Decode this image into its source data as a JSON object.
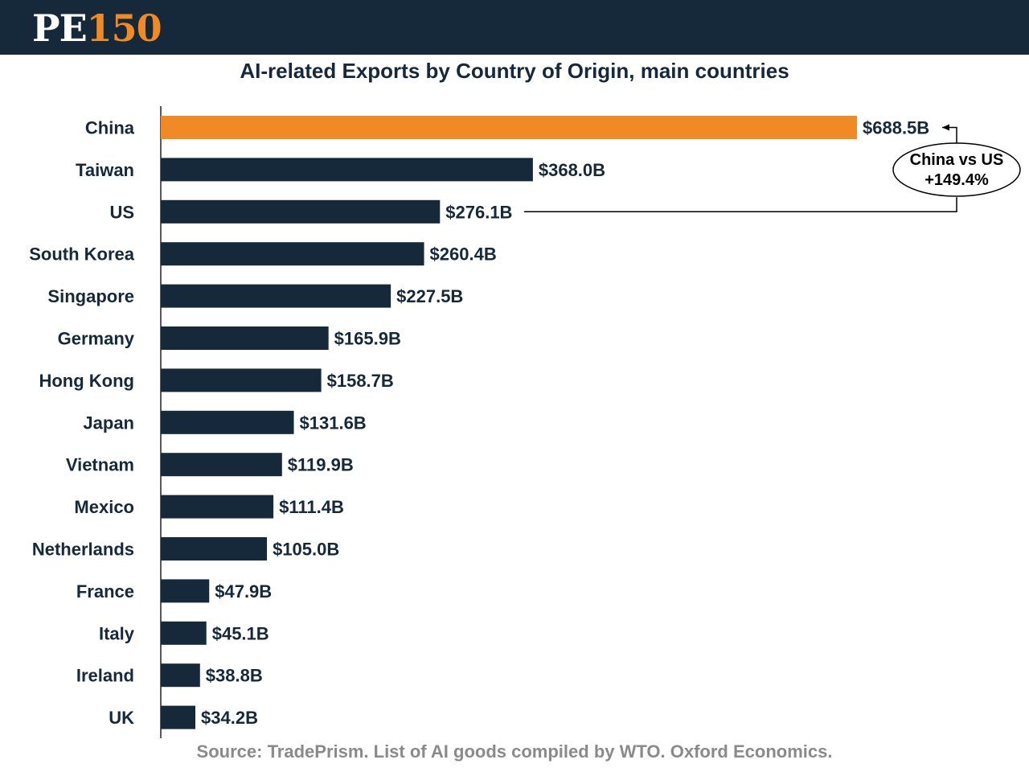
{
  "header": {
    "logo_pe": "PE",
    "logo_num": "150"
  },
  "colors": {
    "header_bg": "#15293a",
    "bar": "#15293a",
    "highlight": "#f08a24",
    "text": "#15293a",
    "source": "#8a8a8a"
  },
  "chart_data": {
    "type": "bar",
    "orientation": "horizontal",
    "title": "AI-related Exports by Country of Origin, main countries",
    "categories": [
      "China",
      "Taiwan",
      "US",
      "South Korea",
      "Singapore",
      "Germany",
      "Hong Kong",
      "Japan",
      "Vietnam",
      "Mexico",
      "Netherlands",
      "France",
      "Italy",
      "Ireland",
      "UK"
    ],
    "values": [
      688.5,
      368.0,
      276.1,
      260.4,
      227.5,
      165.9,
      158.7,
      131.6,
      119.9,
      111.4,
      105.0,
      47.9,
      45.1,
      38.8,
      34.2
    ],
    "value_labels": [
      "$688.5B",
      "$368.0B",
      "$276.1B",
      "$260.4B",
      "$227.5B",
      "$165.9B",
      "$158.7B",
      "$131.6B",
      "$119.9B",
      "$111.4B",
      "$105.0B",
      "$47.9B",
      "$45.1B",
      "$38.8B",
      "$34.2B"
    ],
    "unit": "USD billions",
    "highlight_category": "China",
    "xlim": [
      0,
      688.5
    ],
    "annotation": {
      "line1": "China vs US",
      "line2": "+149.4%",
      "from": "US",
      "to": "China"
    },
    "source": "Source: TradePrism. List of AI goods compiled by WTO. Oxford Economics."
  }
}
